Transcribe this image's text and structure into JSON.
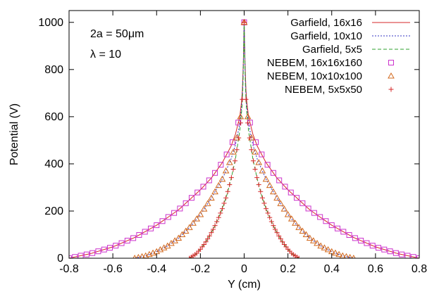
{
  "chart_data": {
    "type": "line",
    "xlabel": "Y (cm)",
    "ylabel": "Potential (V)",
    "xlim": [
      -0.8,
      0.8
    ],
    "ylim": [
      0,
      1050
    ],
    "xticks": [
      "-0.8",
      "-0.6",
      "-0.4",
      "-0.2",
      "0",
      "0.2",
      "0.4",
      "0.6",
      "0.8"
    ],
    "yticks": [
      "0",
      "200",
      "400",
      "600",
      "800",
      "1000"
    ],
    "xtick_values": [
      -0.8,
      -0.6,
      -0.4,
      -0.2,
      0,
      0.2,
      0.4,
      0.6,
      0.8
    ],
    "ytick_values": [
      0,
      200,
      400,
      600,
      800,
      1000
    ],
    "grid": false,
    "legend_position": "top-right",
    "annotations": [
      "2a = 50μm",
      "λ = 10"
    ],
    "series": [
      {
        "name": "Garfield, 16x16",
        "style": "line",
        "dash": "solid",
        "color": "#d62728",
        "half_width": 0.8,
        "x": [
          0.0,
          0.003,
          0.006,
          0.01,
          0.02,
          0.04,
          0.06,
          0.1,
          0.15,
          0.2,
          0.3,
          0.4,
          0.5,
          0.6,
          0.7,
          0.8
        ],
        "y": [
          1000,
          860,
          750,
          680,
          600,
          525,
          475,
          405,
          340,
          290,
          205,
          140,
          88,
          48,
          20,
          0
        ]
      },
      {
        "name": "Garfield, 10x10",
        "style": "line",
        "dash": "dotted",
        "color": "#3030c0",
        "half_width": 0.5,
        "x": [
          0.0,
          0.003,
          0.006,
          0.01,
          0.02,
          0.04,
          0.06,
          0.1,
          0.15,
          0.2,
          0.25,
          0.3,
          0.35,
          0.4,
          0.45,
          0.5
        ],
        "y": [
          1000,
          850,
          740,
          660,
          570,
          480,
          420,
          335,
          255,
          185,
          130,
          85,
          52,
          28,
          10,
          0
        ]
      },
      {
        "name": "Garfield, 5x5",
        "style": "line",
        "dash": "dashed",
        "color": "#2ca02c",
        "half_width": 0.25,
        "x": [
          0.0,
          0.003,
          0.006,
          0.01,
          0.02,
          0.04,
          0.06,
          0.08,
          0.1,
          0.12,
          0.14,
          0.16,
          0.18,
          0.2,
          0.22,
          0.25
        ],
        "y": [
          1000,
          830,
          720,
          640,
          540,
          420,
          335,
          265,
          210,
          165,
          125,
          92,
          62,
          38,
          18,
          0
        ]
      },
      {
        "name": "NEBEM, 16x16x160",
        "style": "marker",
        "marker": "square",
        "color": "#cc33cc",
        "half_width": 0.8,
        "x": [
          0.0,
          0.003,
          0.006,
          0.01,
          0.02,
          0.04,
          0.06,
          0.1,
          0.15,
          0.2,
          0.3,
          0.4,
          0.5,
          0.6,
          0.7,
          0.8
        ],
        "y": [
          1000,
          860,
          750,
          680,
          600,
          525,
          475,
          405,
          340,
          290,
          205,
          140,
          88,
          48,
          20,
          0
        ]
      },
      {
        "name": "NEBEM, 10x10x100",
        "style": "marker",
        "marker": "triangle",
        "color": "#d2691e",
        "half_width": 0.5,
        "x": [
          0.0,
          0.003,
          0.006,
          0.01,
          0.02,
          0.04,
          0.06,
          0.1,
          0.15,
          0.2,
          0.25,
          0.3,
          0.35,
          0.4,
          0.45,
          0.5
        ],
        "y": [
          1000,
          850,
          740,
          660,
          570,
          480,
          420,
          335,
          255,
          185,
          130,
          85,
          52,
          28,
          10,
          0
        ]
      },
      {
        "name": "NEBEM, 5x5x50",
        "style": "marker",
        "marker": "plus",
        "color": "#d62728",
        "half_width": 0.25,
        "x": [
          0.0,
          0.003,
          0.006,
          0.01,
          0.02,
          0.04,
          0.06,
          0.08,
          0.1,
          0.12,
          0.14,
          0.16,
          0.18,
          0.2,
          0.22,
          0.25
        ],
        "y": [
          1000,
          830,
          720,
          640,
          540,
          420,
          335,
          265,
          210,
          165,
          125,
          92,
          62,
          38,
          18,
          0
        ]
      }
    ]
  }
}
